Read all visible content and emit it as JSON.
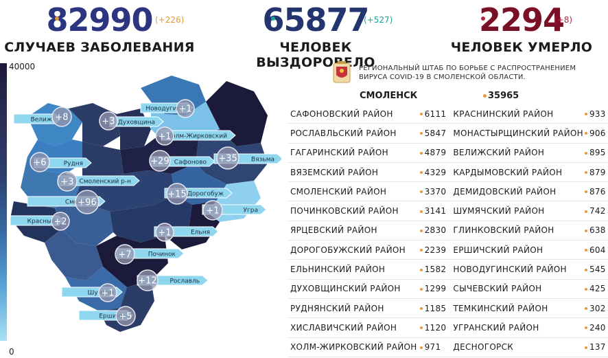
{
  "stats": {
    "cases": {
      "value": "82990",
      "delta": "(+226)",
      "caption": "СЛУЧАЕВ ЗАБОЛЕВАНИЯ"
    },
    "recovered": {
      "value": "65877",
      "delta": "(+527)",
      "caption": "ЧЕЛОВЕК ВЫЗДОРОВЕЛО"
    },
    "deaths": {
      "value": "2294",
      "delta": "(+8)",
      "caption": "ЧЕЛОВЕК УМЕРЛО"
    }
  },
  "scale": {
    "max": "40000",
    "min": "0"
  },
  "headquarters": {
    "line1": "РЕГИОНАЛЬНЫЙ ШТАБ ПО БОРЬБЕ С РАСПРОСТРАНЕНИЕМ",
    "line2": "ВИРУСА COVID-19 В СМОЛЕНСКОЙ ОБЛАСТИ."
  },
  "capital": {
    "name": "СМОЛЕНСК",
    "value": "35965"
  },
  "table": {
    "rows": [
      {
        "n1": "САФОНОВСКИЙ РАЙОН",
        "v1": "6111",
        "n2": "КРАСНИНСКИЙ РАЙОН",
        "v2": "933"
      },
      {
        "n1": "РОСЛАВЛЬСКИЙ РАЙОН",
        "v1": "5847",
        "n2": "МОНАСТЫРЩИНСКИЙ РАЙОН",
        "v2": "906"
      },
      {
        "n1": "ГАГАРИНСКИЙ РАЙОН",
        "v1": "4879",
        "n2": "ВЕЛИЖСКИЙ РАЙОН",
        "v2": "895"
      },
      {
        "n1": "ВЯЗЕМСКИЙ РАЙОН",
        "v1": "4329",
        "n2": "КАРДЫМОВСКИЙ РАЙОН",
        "v2": "879"
      },
      {
        "n1": "СМОЛЕНСКИЙ РАЙОН",
        "v1": "3370",
        "n2": "ДЕМИДОВСКИЙ РАЙОН",
        "v2": "876"
      },
      {
        "n1": "ПОЧИНКОВСКИЙ РАЙОН",
        "v1": "3141",
        "n2": "ШУМЯЧСКИЙ РАЙОН",
        "v2": "742"
      },
      {
        "n1": "ЯРЦЕВСКИЙ РАЙОН",
        "v1": "2830",
        "n2": "ГЛИНКОВСКИЙ РАЙОН",
        "v2": "638"
      },
      {
        "n1": "ДОРОГОБУЖСКИЙ РАЙОН",
        "v1": "2239",
        "n2": "ЕРШИЧСКИЙ РАЙОН",
        "v2": "604"
      },
      {
        "n1": "ЕЛЬНИНСКИЙ РАЙОН",
        "v1": "1582",
        "n2": "НОВОДУГИНСКИЙ РАЙОН",
        "v2": "545"
      },
      {
        "n1": "ДУХОВЩИНСКИЙ РАЙОН",
        "v1": "1299",
        "n2": "СЫЧЕВСКИЙ РАЙОН",
        "v2": "425"
      },
      {
        "n1": "РУДНЯНСКИЙ РАЙОН",
        "v1": "1185",
        "n2": "ТЕМКИНСКИЙ РАЙОН",
        "v2": "302"
      },
      {
        "n1": "ХИСЛАВИЧСКИЙ РАЙОН",
        "v1": "1120",
        "n2": "УГРАНСКИЙ РАЙОН",
        "v2": "240"
      },
      {
        "n1": "ХОЛМ-ЖИРКОВСКИЙ РАЙОН",
        "v1": "971",
        "n2": "ДЕСНОГОРСК",
        "v2": "137"
      }
    ]
  },
  "map": {
    "regions": [
      {
        "label": "Велиж",
        "count": "+8"
      },
      {
        "label": "Духовщина",
        "count": "+3"
      },
      {
        "label": "Новодугино",
        "count": "+1"
      },
      {
        "label": "Холм-Жирковский",
        "count": "+1"
      },
      {
        "label": "Рудня",
        "count": "+6"
      },
      {
        "label": "Сафоново",
        "count": "+29"
      },
      {
        "label": "Вязьма",
        "count": "+35"
      },
      {
        "label": "Смоленский р-н",
        "count": "+3"
      },
      {
        "label": "Дорогобуж",
        "count": "+15"
      },
      {
        "label": "Смоленск",
        "count": "+96"
      },
      {
        "label": "Угра",
        "count": "+1"
      },
      {
        "label": "Красный",
        "count": "+2"
      },
      {
        "label": "Ельня",
        "count": "+1"
      },
      {
        "label": "Починок",
        "count": "+7"
      },
      {
        "label": "Рославль",
        "count": "+12"
      },
      {
        "label": "Шумячи",
        "count": "+1"
      },
      {
        "label": "Ершичи",
        "count": "+5"
      }
    ]
  }
}
